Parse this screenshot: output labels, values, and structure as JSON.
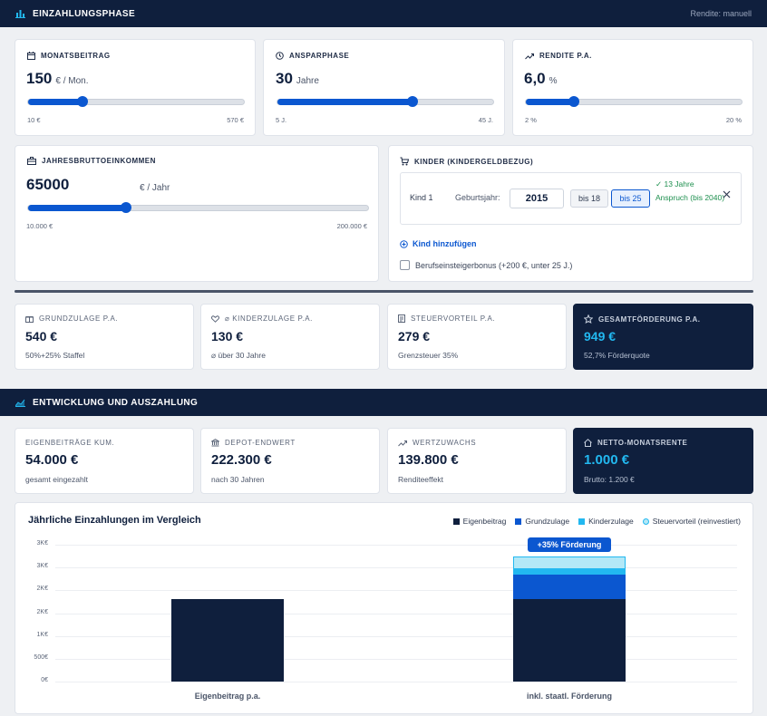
{
  "section1": {
    "title": "EINZAHLUNGSPHASE",
    "right": "Rendite: manuell"
  },
  "monatsbeitrag": {
    "label": "MONATSBEITRAG",
    "value": "150",
    "unit": "€ / Mon.",
    "min": "10 €",
    "max": "570 €",
    "level": 0.25
  },
  "ansparphase": {
    "label": "ANSPARPHASE",
    "value": "30",
    "unit": "Jahre",
    "min": "5 J.",
    "max": "45 J.",
    "level": 0.625
  },
  "rendite": {
    "label": "RENDITE P.A.",
    "value": "6,0",
    "unit": "%",
    "min": "2 %",
    "max": "20 %",
    "level": 0.222
  },
  "einkommen": {
    "label": "JAHRESBRUTTOEINKOMMEN",
    "value": "65000",
    "unit": "€ / Jahr",
    "min": "10.000 €",
    "max": "200.000 €",
    "level": 0.289
  },
  "kinder": {
    "label": "KINDER (KINDERGELDBEZUG)",
    "kind_label": "Kind 1",
    "geburt_label": "Geburtsjahr:",
    "geburt_value": "2015",
    "bis18": "bis 18",
    "bis25": "bis 25",
    "anspruch": "✓ 13 Jahre Anspruch (bis 2040)",
    "add": "Kind hinzufügen",
    "bonus": "Berufseinsteigerbonus (+200 €, unter 25 J.)"
  },
  "foerder": [
    {
      "label": "GRUNDZULAGE P.A.",
      "value": "540 €",
      "sub": "50%+25% Staffel"
    },
    {
      "label": "⌀ KINDERZULAGE P.A.",
      "value": "130 €",
      "sub": "⌀ über 30 Jahre"
    },
    {
      "label": "STEUERVORTEIL P.A.",
      "value": "279 €",
      "sub": "Grenzsteuer 35%"
    },
    {
      "label": "GESAMTFÖRDERUNG P.A.",
      "value": "949 €",
      "sub": "52,7% Förderquote"
    }
  ],
  "section2": {
    "title": "ENTWICKLUNG UND AUSZAHLUNG"
  },
  "entwicklung": [
    {
      "label": "EIGENBEITRÄGE KUM.",
      "value": "54.000 €",
      "sub": "gesamt eingezahlt"
    },
    {
      "label": "DEPOT-ENDWERT",
      "value": "222.300 €",
      "sub": "nach 30 Jahren"
    },
    {
      "label": "WERTZUWACHS",
      "value": "139.800 €",
      "sub": "Renditeeffekt"
    },
    {
      "label": "NETTO-MONATSRENTE",
      "value": "1.000 €",
      "sub": "Brutto: 1.200 €"
    }
  ],
  "colors": {
    "navy": "#0f1f3d",
    "blue": "#0b57d0",
    "cyan": "#22b8f0",
    "light": "#b3e8f7"
  },
  "chart_data": {
    "type": "bar",
    "title": "Jährliche Einzahlungen im Vergleich",
    "categories": [
      "Eigenbeitrag p.a.",
      "inkl. staatl. Förderung"
    ],
    "series": [
      {
        "name": "Eigenbeitrag",
        "values": [
          1800,
          1800
        ],
        "color": "#0f1f3d"
      },
      {
        "name": "Grundzulage",
        "values": [
          0,
          540
        ],
        "color": "#0b57d0"
      },
      {
        "name": "Kinderzulage",
        "values": [
          0,
          130
        ],
        "color": "#22b8f0"
      },
      {
        "name": "Steuervorteil (reinvestiert)",
        "values": [
          0,
          279
        ],
        "color": "#b3e8f7"
      }
    ],
    "yticks": [
      "0€",
      "500€",
      "1K€",
      "2K€",
      "2K€",
      "3K€",
      "3K€"
    ],
    "ylim": [
      0,
      3000
    ],
    "annotation": "+35% Förderung",
    "legend": "top-right",
    "grid": true
  }
}
